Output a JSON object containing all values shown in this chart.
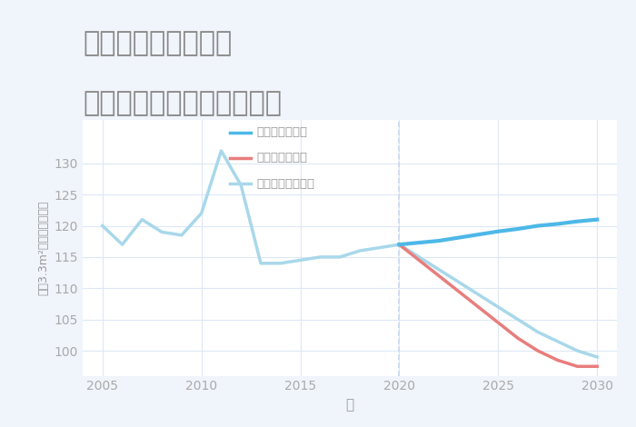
{
  "title_line1": "千葉県清水公園駅の",
  "title_line2": "中古マンションの価格推移",
  "xlabel": "年",
  "ylabel_chars": [
    "坪",
    "（",
    "3",
    ".",
    "3",
    "m",
    "²",
    "）",
    "単",
    "価",
    "（",
    "万",
    "円",
    "）"
  ],
  "ylabel": "坪（3.3m²）単価（万円）",
  "background_color": "#f0f4fb",
  "plot_background": "#ffffff",
  "ylim": [
    96,
    137
  ],
  "xlim": [
    2004,
    2031
  ],
  "yticks": [
    100,
    105,
    110,
    115,
    120,
    125,
    130
  ],
  "xticks": [
    2005,
    2010,
    2015,
    2020,
    2025,
    2030
  ],
  "historical": {
    "years": [
      2005,
      2006,
      2007,
      2008,
      2009,
      2010,
      2011,
      2012,
      2013,
      2014,
      2015,
      2016,
      2017,
      2018,
      2019,
      2020
    ],
    "values": [
      120,
      117,
      121,
      119,
      118.5,
      122,
      132,
      126.5,
      114,
      114,
      114.5,
      115,
      115,
      116,
      116.5,
      117
    ],
    "color": "#a8d8ea",
    "linewidth": 2.5,
    "label": "ノーマルシナリオ"
  },
  "good": {
    "years": [
      2020,
      2021,
      2022,
      2023,
      2024,
      2025,
      2026,
      2027,
      2028,
      2029,
      2030
    ],
    "values": [
      117,
      117.3,
      117.6,
      118.1,
      118.6,
      119.1,
      119.5,
      120.0,
      120.3,
      120.7,
      121.0
    ],
    "color": "#4db8e8",
    "linewidth": 3,
    "label": "グッドシナリオ"
  },
  "bad": {
    "years": [
      2020,
      2021,
      2022,
      2023,
      2024,
      2025,
      2026,
      2027,
      2028,
      2029,
      2030
    ],
    "values": [
      117,
      114.5,
      112,
      109.5,
      107,
      104.5,
      102,
      100,
      98.5,
      97.5,
      97.5
    ],
    "color": "#e87d7d",
    "linewidth": 2.5,
    "label": "バッドシナリオ"
  },
  "normal_future": {
    "years": [
      2020,
      2021,
      2022,
      2023,
      2024,
      2025,
      2026,
      2027,
      2028,
      2029,
      2030
    ],
    "values": [
      117,
      115,
      113,
      111,
      109,
      107,
      105,
      103,
      101.5,
      100,
      99
    ],
    "color": "#a8d8ea",
    "linewidth": 2.5
  },
  "vline_x": 2020,
  "vline_color": "#c8d8f0",
  "vline_style": "--",
  "title_color": "#888888",
  "title_fontsize": 22,
  "axis_label_color": "#999999",
  "tick_color": "#aaaaaa",
  "grid_color": "#dde8f5",
  "legend_labels": [
    "グッドシナリオ",
    "バッドシナリオ",
    "ノーマルシナリオ"
  ],
  "legend_colors": [
    "#4db8e8",
    "#e87d7d",
    "#a8d8ea"
  ]
}
